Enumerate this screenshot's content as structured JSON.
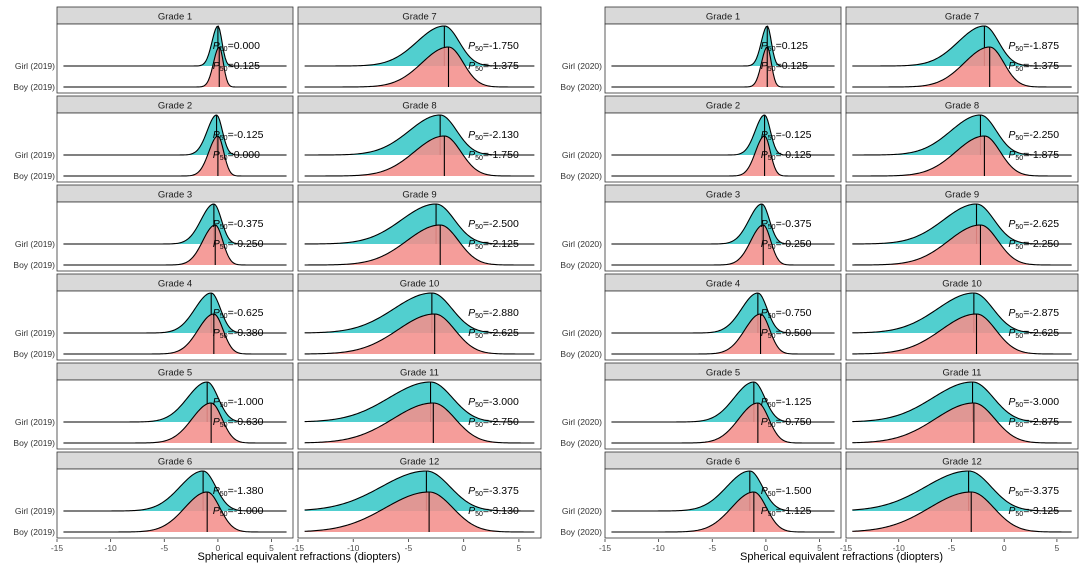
{
  "chart_data": {
    "type": "ridgeline",
    "xlabel": "Spherical equivalent refractions (diopters)",
    "xlim": [
      -15,
      7
    ],
    "xticks": [
      -15,
      -10,
      -5,
      0,
      5
    ],
    "xtick_labels": [
      "-15",
      "-10",
      "-5",
      "0",
      "5"
    ],
    "series_colors": {
      "girl": "#39c8c8",
      "boy": "#f4908c"
    },
    "statistic_prefix": "P",
    "statistic_subscript": "50",
    "panels": [
      {
        "year": "2019",
        "row_labels": [
          "Girl (2019)",
          "Boy (2019)"
        ],
        "grades": [
          {
            "label": "Grade 1",
            "girl_p50": 0.0,
            "boy_p50": 0.125,
            "girl_text": "=0.000",
            "boy_text": "=0.125"
          },
          {
            "label": "Grade 2",
            "girl_p50": -0.125,
            "boy_p50": 0.0,
            "girl_text": "=-0.125",
            "boy_text": "=0.000"
          },
          {
            "label": "Grade 3",
            "girl_p50": -0.375,
            "boy_p50": -0.25,
            "girl_text": "=-0.375",
            "boy_text": "=-0.250"
          },
          {
            "label": "Grade 4",
            "girl_p50": -0.625,
            "boy_p50": -0.38,
            "girl_text": "=-0.625",
            "boy_text": "=-0.380"
          },
          {
            "label": "Grade 5",
            "girl_p50": -1.0,
            "boy_p50": -0.63,
            "girl_text": "=-1.000",
            "boy_text": "=-0.630"
          },
          {
            "label": "Grade 6",
            "girl_p50": -1.38,
            "boy_p50": -1.0,
            "girl_text": "=-1.380",
            "boy_text": "=-1.000"
          },
          {
            "label": "Grade 7",
            "girl_p50": -1.75,
            "boy_p50": -1.375,
            "girl_text": "=-1.750",
            "boy_text": "=-1.375"
          },
          {
            "label": "Grade 8",
            "girl_p50": -2.13,
            "boy_p50": -1.75,
            "girl_text": "=-2.130",
            "boy_text": "=-1.750"
          },
          {
            "label": "Grade 9",
            "girl_p50": -2.5,
            "boy_p50": -2.125,
            "girl_text": "=-2.500",
            "boy_text": "=-2.125"
          },
          {
            "label": "Grade 10",
            "girl_p50": -2.88,
            "boy_p50": -2.625,
            "girl_text": "=-2.880",
            "boy_text": "=-2.625"
          },
          {
            "label": "Grade 11",
            "girl_p50": -3.0,
            "boy_p50": -2.75,
            "girl_text": "=-3.000",
            "boy_text": "=-2.750"
          },
          {
            "label": "Grade 12",
            "girl_p50": -3.375,
            "boy_p50": -3.13,
            "girl_text": "=-3.375",
            "boy_text": "=-3.130"
          }
        ]
      },
      {
        "year": "2020",
        "row_labels": [
          "Girl (2020)",
          "Boy (2020)"
        ],
        "grades": [
          {
            "label": "Grade 1",
            "girl_p50": 0.125,
            "boy_p50": 0.125,
            "girl_text": "=0.125",
            "boy_text": "=0.125"
          },
          {
            "label": "Grade 2",
            "girl_p50": -0.125,
            "boy_p50": -0.125,
            "girl_text": "=-0.125",
            "boy_text": "=-0.125"
          },
          {
            "label": "Grade 3",
            "girl_p50": -0.375,
            "boy_p50": -0.25,
            "girl_text": "=-0.375",
            "boy_text": "=-0.250"
          },
          {
            "label": "Grade 4",
            "girl_p50": -0.75,
            "boy_p50": -0.5,
            "girl_text": "=-0.750",
            "boy_text": "=-0.500"
          },
          {
            "label": "Grade 5",
            "girl_p50": -1.125,
            "boy_p50": -0.75,
            "girl_text": "=-1.125",
            "boy_text": "=-0.750"
          },
          {
            "label": "Grade 6",
            "girl_p50": -1.5,
            "boy_p50": -1.125,
            "girl_text": "=-1.500",
            "boy_text": "=-1.125"
          },
          {
            "label": "Grade 7",
            "girl_p50": -1.875,
            "boy_p50": -1.375,
            "girl_text": "=-1.875",
            "boy_text": "=-1.375"
          },
          {
            "label": "Grade 8",
            "girl_p50": -2.25,
            "boy_p50": -1.875,
            "girl_text": "=-2.250",
            "boy_text": "=-1.875"
          },
          {
            "label": "Grade 9",
            "girl_p50": -2.625,
            "boy_p50": -2.25,
            "girl_text": "=-2.625",
            "boy_text": "=-2.250"
          },
          {
            "label": "Grade 10",
            "girl_p50": -2.875,
            "boy_p50": -2.625,
            "girl_text": "=-2.875",
            "boy_text": "=-2.625"
          },
          {
            "label": "Grade 11",
            "girl_p50": -3.0,
            "boy_p50": -2.875,
            "girl_text": "=-3.000",
            "boy_text": "=-2.875"
          },
          {
            "label": "Grade 12",
            "girl_p50": -3.375,
            "boy_p50": -3.125,
            "girl_text": "=-3.375",
            "boy_text": "=-3.125"
          }
        ]
      }
    ]
  }
}
